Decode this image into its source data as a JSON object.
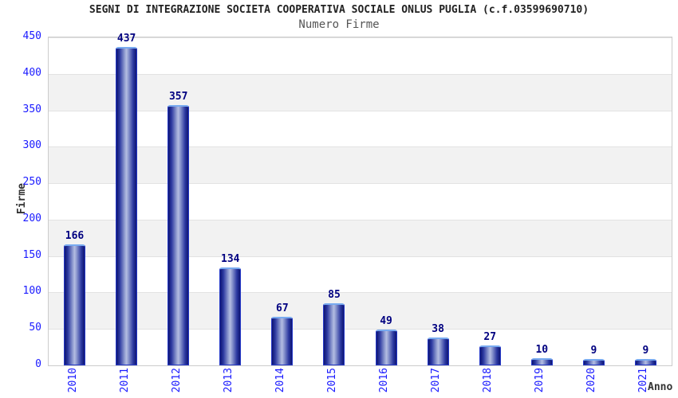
{
  "chart_data": {
    "type": "bar",
    "title": "SEGNI DI INTEGRAZIONE SOCIETA COOPERATIVA SOCIALE ONLUS PUGLIA (c.f.03599690710)",
    "subtitle": "Numero Firme",
    "xlabel": "Anno",
    "ylabel": "Firme",
    "categories": [
      "2010",
      "2011",
      "2012",
      "2013",
      "2014",
      "2015",
      "2016",
      "2017",
      "2018",
      "2019",
      "2020",
      "2021"
    ],
    "values": [
      166,
      437,
      357,
      134,
      67,
      85,
      49,
      38,
      27,
      10,
      9,
      9
    ],
    "ylim": [
      0,
      450
    ],
    "yticks": [
      0,
      50,
      100,
      150,
      200,
      250,
      300,
      350,
      400,
      450
    ],
    "grid": true,
    "legend": false,
    "plot_background": "alternating horizontal bands every 50 units",
    "bar_style": "cylindrical blue gradient with light-blue top edge"
  },
  "colors": {
    "tick_label": "#1a1aff",
    "value_label": "#000080",
    "title": "#222222",
    "subtitle": "#555555",
    "axis_title": "#333333",
    "band_gray": "#f2f2f2",
    "grid_line": "#e2e2e2",
    "plot_border": "#cccccc",
    "bar_dark": "#0e1572",
    "bar_mid": "#2b38a0",
    "bar_light": "#b4bde2",
    "bar_border": "#2438c8",
    "bar_top_edge": "#78aaf0"
  }
}
